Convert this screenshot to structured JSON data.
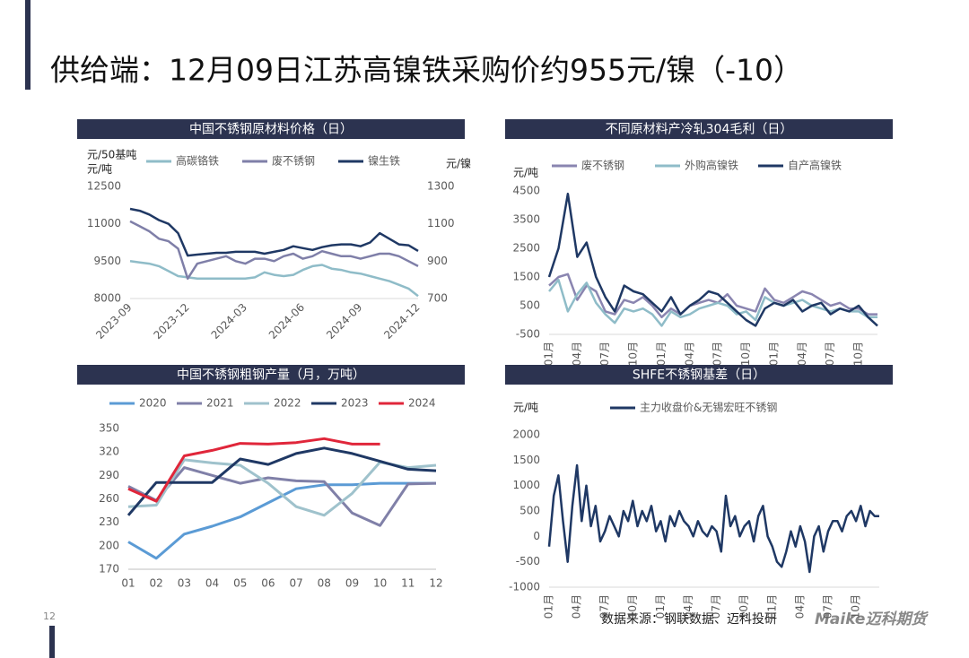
{
  "title": "供给端：12月09日江苏高镍铁采购价约955元/镍（-10）",
  "page_number": "12",
  "source": "数据来源：钢联数据、迈科投研",
  "logo": "Maike迈科期货",
  "chart_data": [
    {
      "type": "line",
      "title": "中国不锈钢原材料价格（日）",
      "ylabel": [
        "元/50基吨",
        "元/吨"
      ],
      "y2label": "元/镍",
      "categories": [
        "2023-09",
        null,
        null,
        null,
        null,
        null,
        "2023-12",
        null,
        null,
        null,
        null,
        null,
        "2024-03",
        null,
        null,
        null,
        null,
        null,
        "2024-06",
        null,
        null,
        null,
        null,
        null,
        "2024-09",
        null,
        null,
        null,
        null,
        null,
        "2024-12"
      ],
      "ylim": [
        8000,
        12500
      ],
      "yticks": [
        8000,
        9500,
        11000,
        12500
      ],
      "y2lim": [
        700,
        1300
      ],
      "y2ticks": [
        700,
        900,
        1100,
        1300
      ],
      "series": [
        {
          "name": "高碳铬铁",
          "color": "#8fbcc8",
          "values": [
            9500,
            9450,
            9400,
            9300,
            9100,
            8900,
            8850,
            8800,
            8800,
            8800,
            8800,
            8800,
            8800,
            8850,
            9050,
            8950,
            8900,
            8950,
            9150,
            9300,
            9350,
            9200,
            9150,
            9050,
            9000,
            8900,
            8800,
            8700,
            8550,
            8400,
            8100
          ]
        },
        {
          "name": "废不锈钢",
          "color": "#7f7fa8",
          "values": [
            11100,
            10900,
            10700,
            10400,
            10300,
            10000,
            8800,
            9400,
            9500,
            9600,
            9700,
            9500,
            9400,
            9600,
            9600,
            9500,
            9700,
            9800,
            9600,
            9700,
            9900,
            9800,
            9700,
            9700,
            9600,
            9700,
            9800,
            9800,
            9700,
            9500,
            9300
          ]
        },
        {
          "name": "镍生铁",
          "color": "#1f3864",
          "axis": "y2",
          "values": [
            1180,
            1170,
            1150,
            1120,
            1100,
            1050,
            930,
            935,
            940,
            945,
            945,
            950,
            950,
            950,
            940,
            950,
            960,
            980,
            970,
            960,
            975,
            985,
            990,
            990,
            980,
            1000,
            1050,
            1020,
            990,
            985,
            955
          ]
        }
      ]
    },
    {
      "type": "line",
      "title": "不同原材料产冷轧304毛利（日）",
      "ylabel": [
        "元/吨"
      ],
      "categories": [
        "01月",
        null,
        null,
        "04月",
        null,
        null,
        "07月",
        null,
        null,
        "10月",
        null,
        null,
        "01月",
        null,
        null,
        "04月",
        null,
        null,
        "07月",
        null,
        null,
        "10月",
        null,
        null,
        "01月",
        null,
        null,
        "04月",
        null,
        null,
        "07月",
        null,
        null,
        "10月",
        null,
        null
      ],
      "ylim": [
        -500,
        4500
      ],
      "yticks": [
        -500,
        500,
        1500,
        2500,
        3500,
        4500
      ],
      "series": [
        {
          "name": "废不锈钢",
          "color": "#8a85b0",
          "values": [
            1200,
            1500,
            1600,
            700,
            1200,
            1000,
            300,
            200,
            700,
            600,
            800,
            500,
            100,
            400,
            200,
            500,
            600,
            700,
            600,
            900,
            500,
            400,
            300,
            1100,
            700,
            600,
            800,
            1000,
            900,
            700,
            500,
            600,
            400,
            400,
            200,
            200
          ]
        },
        {
          "name": "外购高镍铁",
          "color": "#8fbcc8",
          "values": [
            1000,
            1400,
            300,
            900,
            1300,
            600,
            200,
            -100,
            400,
            300,
            400,
            200,
            -200,
            300,
            100,
            200,
            400,
            500,
            600,
            500,
            200,
            300,
            0,
            800,
            600,
            500,
            600,
            700,
            500,
            400,
            300,
            400,
            300,
            300,
            100,
            100
          ]
        },
        {
          "name": "自产高镍铁",
          "color": "#1f3864",
          "values": [
            1500,
            2500,
            4400,
            2200,
            2700,
            1500,
            800,
            300,
            1200,
            1000,
            900,
            600,
            300,
            800,
            200,
            500,
            700,
            1000,
            900,
            600,
            300,
            0,
            -200,
            400,
            600,
            500,
            700,
            300,
            500,
            600,
            200,
            400,
            300,
            500,
            100,
            -200
          ]
        }
      ]
    },
    {
      "type": "line",
      "title": "中国不锈钢粗钢产量（月，万吨）",
      "categories": [
        "01",
        "02",
        "03",
        "04",
        "05",
        "06",
        "07",
        "08",
        "09",
        "10",
        "11",
        "12"
      ],
      "ylim": [
        170,
        350
      ],
      "yticks": [
        170,
        200,
        230,
        260,
        290,
        320,
        350
      ],
      "series": [
        {
          "name": "2020",
          "color": "#5b9bd5",
          "values": [
            205,
            184,
            215,
            225,
            237,
            255,
            273,
            278,
            278,
            280,
            280,
            280
          ]
        },
        {
          "name": "2021",
          "color": "#8080a8",
          "values": [
            276,
            258,
            300,
            290,
            280,
            287,
            283,
            282,
            242,
            226,
            279,
            280
          ]
        },
        {
          "name": "2022",
          "color": "#9fc2cc",
          "values": [
            250,
            252,
            310,
            306,
            303,
            280,
            250,
            239,
            267,
            307,
            300,
            303
          ]
        },
        {
          "name": "2023",
          "color": "#1f3864",
          "values": [
            239,
            281,
            281,
            281,
            311,
            304,
            318,
            325,
            318,
            308,
            298,
            296
          ]
        },
        {
          "name": "2024",
          "color": "#e0263a",
          "values": [
            273,
            257,
            315,
            322,
            331,
            330,
            332,
            337,
            330,
            330,
            null,
            null
          ]
        }
      ]
    },
    {
      "type": "line",
      "title": "SHFE不锈钢基差（日）",
      "ylabel": [
        "元/吨"
      ],
      "categories": [
        "01月",
        null,
        null,
        null,
        null,
        null,
        "04月",
        null,
        null,
        null,
        null,
        null,
        "07月",
        null,
        null,
        null,
        null,
        null,
        "10月",
        null,
        null,
        null,
        null,
        null,
        "01月",
        null,
        null,
        null,
        null,
        null,
        "04月",
        null,
        null,
        null,
        null,
        null,
        "07月",
        null,
        null,
        null,
        null,
        null,
        "10月",
        null,
        null,
        null,
        null,
        null,
        "01月",
        null,
        null,
        null,
        null,
        null,
        "04月",
        null,
        null,
        null,
        null,
        null,
        "07月",
        null,
        null,
        null,
        null,
        null,
        "10月",
        null,
        null,
        null,
        null,
        null
      ],
      "ylim": [
        -1000,
        2000
      ],
      "yticks": [
        -1000,
        -500,
        0,
        500,
        1000,
        1500,
        2000
      ],
      "series": [
        {
          "name": "主力收盘价&无锡宏旺不锈钢",
          "color": "#1f3864",
          "values": [
            -200,
            800,
            1200,
            300,
            -500,
            600,
            1400,
            300,
            1000,
            200,
            600,
            -100,
            100,
            400,
            200,
            0,
            500,
            300,
            700,
            200,
            500,
            300,
            600,
            100,
            300,
            -100,
            400,
            200,
            500,
            300,
            200,
            0,
            300,
            100,
            0,
            200,
            100,
            -300,
            800,
            200,
            400,
            0,
            200,
            300,
            -100,
            400,
            600,
            0,
            -200,
            -500,
            -600,
            -300,
            100,
            -200,
            200,
            -100,
            -700,
            0,
            200,
            -300,
            100,
            300,
            300,
            100,
            400,
            500,
            300,
            600,
            200,
            500,
            400,
            400
          ]
        }
      ]
    }
  ]
}
